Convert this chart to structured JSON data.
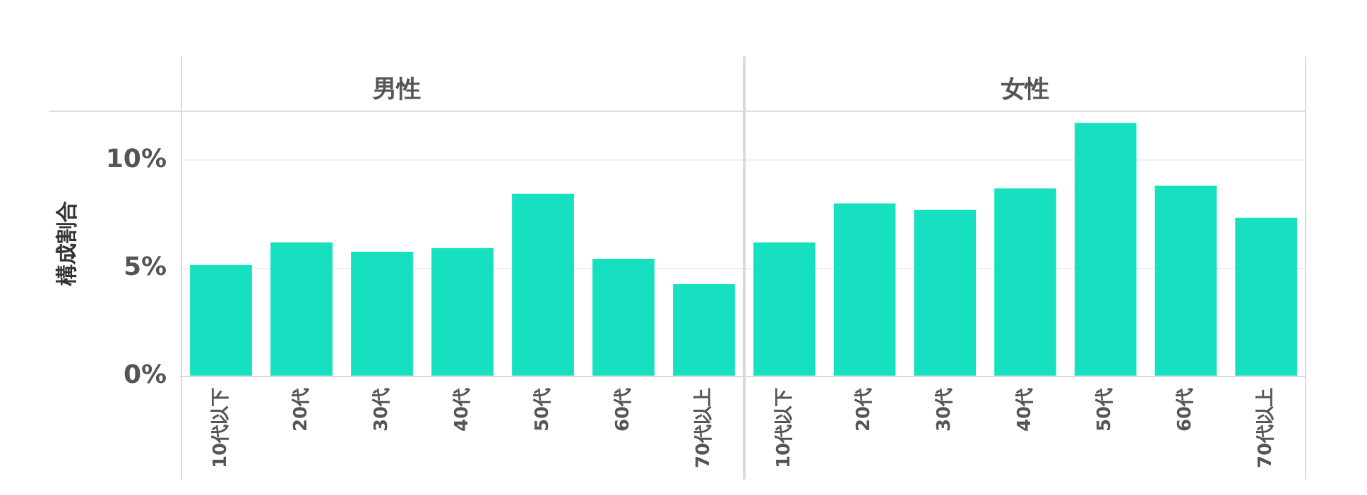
{
  "chart_data": [
    {
      "type": "bar",
      "title": "男性",
      "ylabel": "構成割合",
      "categories": [
        "10代以下",
        "20代",
        "30代",
        "40代",
        "50代",
        "60代",
        "70代以上"
      ],
      "values": [
        5.16,
        6.2,
        5.77,
        5.94,
        8.45,
        5.44,
        4.27
      ],
      "color": "#16e0c0",
      "ylim": [
        0,
        12.3
      ],
      "yticks": [
        {
          "value": 0,
          "label": "0%"
        },
        {
          "value": 5,
          "label": "5%"
        },
        {
          "value": 10,
          "label": "10%"
        }
      ],
      "grid": "y"
    },
    {
      "type": "bar",
      "title": "女性",
      "categories": [
        "10代以下",
        "20代",
        "30代",
        "40代",
        "50代",
        "60代",
        "70代以上"
      ],
      "values": [
        6.2,
        8.0,
        7.7,
        8.7,
        11.73,
        8.82,
        7.34
      ],
      "color": "#16e0c0",
      "ylim": [
        0,
        12.3
      ],
      "yticks": [
        0,
        5,
        10
      ],
      "grid": "y",
      "tick_labels": "x"
    }
  ]
}
